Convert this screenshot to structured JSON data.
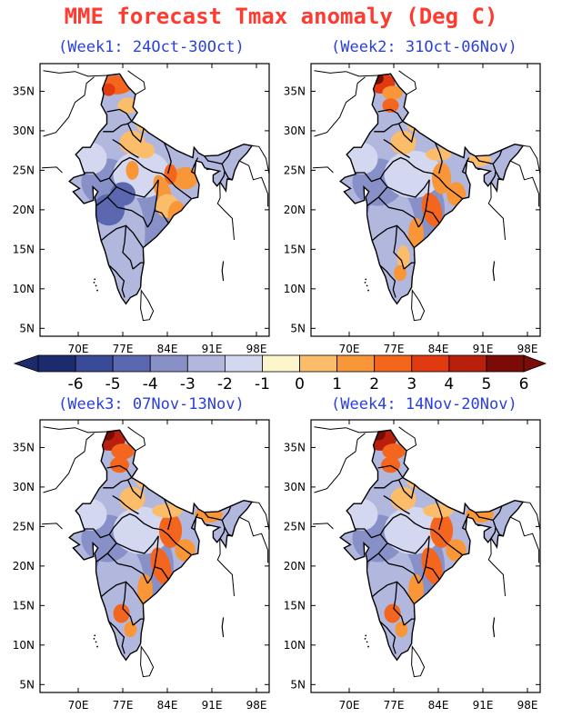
{
  "title": "MME forecast Tmax anomaly (Deg C)",
  "panels": [
    {
      "id": "week1",
      "title": "(Week1: 24Oct-30Oct)",
      "intensity": 1
    },
    {
      "id": "week2",
      "title": "(Week2: 31Oct-06Nov)",
      "intensity": 2
    },
    {
      "id": "week3",
      "title": "(Week3: 07Nov-13Nov)",
      "intensity": 3
    },
    {
      "id": "week4",
      "title": "(Week4: 14Nov-20Nov)",
      "intensity": 3
    }
  ],
  "axes": {
    "lon_ticks": [
      "70E",
      "77E",
      "84E",
      "91E",
      "98E"
    ],
    "lat_ticks": [
      "35N",
      "30N",
      "25N",
      "20N",
      "15N",
      "10N",
      "5N"
    ]
  },
  "colorbar": {
    "labels": [
      "-6",
      "-5",
      "-4",
      "-3",
      "-2",
      "-1",
      "0",
      "1",
      "2",
      "3",
      "4",
      "5",
      "6"
    ],
    "colors": [
      "#1e2a6e",
      "#3a4a96",
      "#5b68b0",
      "#8890c8",
      "#b2b7de",
      "#d4d7f0",
      "#fdf6cc",
      "#fbbd6a",
      "#f89638",
      "#f4661e",
      "#e23a10",
      "#b81f0c",
      "#7a0b06"
    ]
  }
}
